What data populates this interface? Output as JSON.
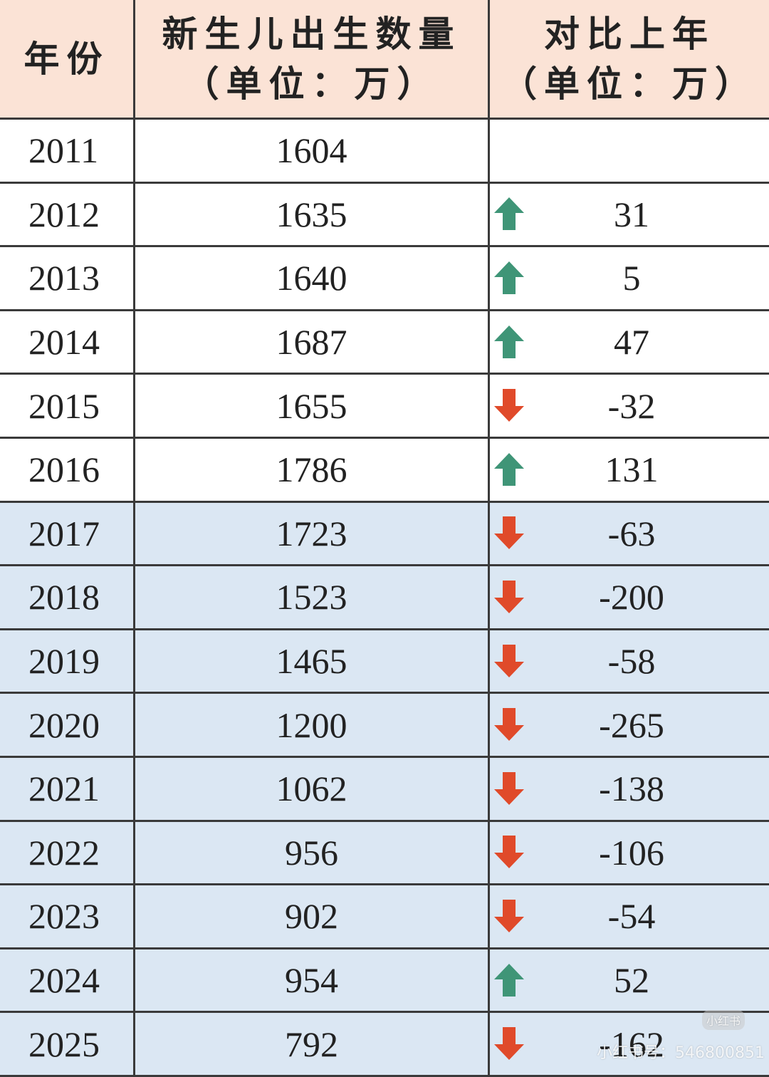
{
  "table": {
    "header": [
      "年份",
      [
        "新生儿出生数量",
        "（单位：万）"
      ],
      [
        "对比上年",
        "（单位：万）"
      ]
    ],
    "rows": [
      [
        2011,
        1604,
        null
      ],
      [
        2012,
        1635,
        31
      ],
      [
        2013,
        1640,
        5
      ],
      [
        2014,
        1687,
        47
      ],
      [
        2015,
        1655,
        -32
      ],
      [
        2016,
        1786,
        131
      ],
      [
        2017,
        1723,
        -63
      ],
      [
        2018,
        1523,
        -200
      ],
      [
        2019,
        1465,
        -58
      ],
      [
        2020,
        1200,
        -265
      ],
      [
        2021,
        1062,
        -138
      ],
      [
        2022,
        956,
        -106
      ],
      [
        2023,
        902,
        -54
      ],
      [
        2024,
        954,
        52
      ],
      [
        2025,
        792,
        -162
      ]
    ],
    "shaded_from_row": 6
  },
  "watermark": [
    "小红书",
    "小红书号：546800851"
  ]
}
